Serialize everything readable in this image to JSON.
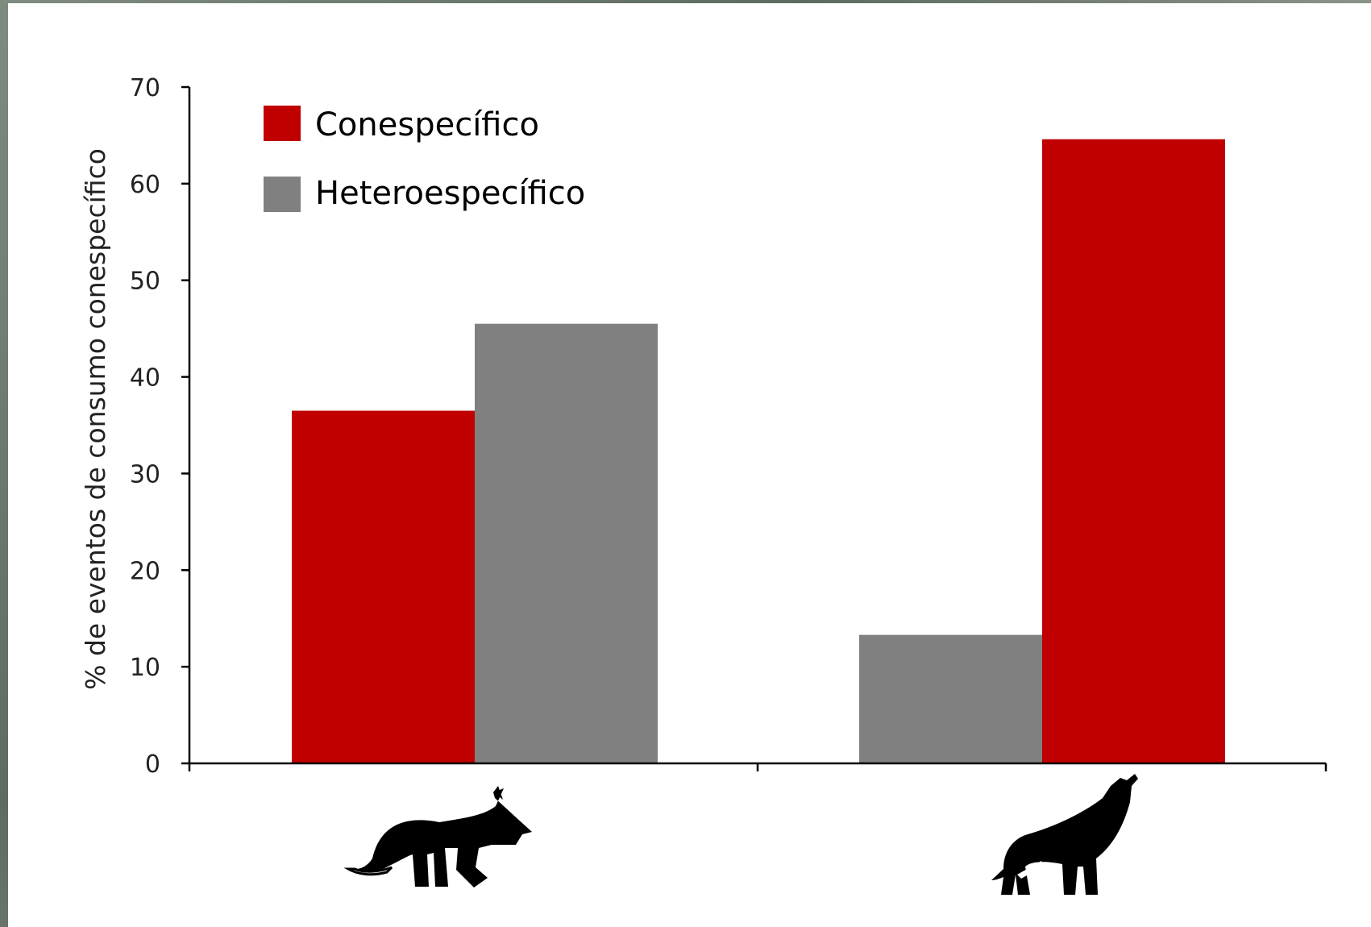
{
  "chart_data": {
    "type": "bar",
    "title": "",
    "xlabel": "",
    "ylabel": "% de eventos de consumo conespecífico",
    "ylim": [
      0,
      70
    ],
    "yticks": [
      0,
      10,
      20,
      30,
      40,
      50,
      60,
      70
    ],
    "grid": false,
    "legend_position": "top-left",
    "categories": [
      "fox",
      "wolf"
    ],
    "category_icons": [
      "fox-icon",
      "howling-wolf-icon"
    ],
    "groups": [
      {
        "category": "fox",
        "bars": [
          {
            "series": "Conespecífico",
            "value": 36.5
          },
          {
            "series": "Heteroespecífico",
            "value": 45.5
          }
        ]
      },
      {
        "category": "wolf",
        "bars": [
          {
            "series": "Heteroespecífico",
            "value": 13.3
          },
          {
            "series": "Conespecífico",
            "value": 64.6
          }
        ]
      }
    ],
    "series": [
      {
        "name": "Conespecífico",
        "color": "#c00000"
      },
      {
        "name": "Heteroespecífico",
        "color": "#808080"
      }
    ]
  }
}
